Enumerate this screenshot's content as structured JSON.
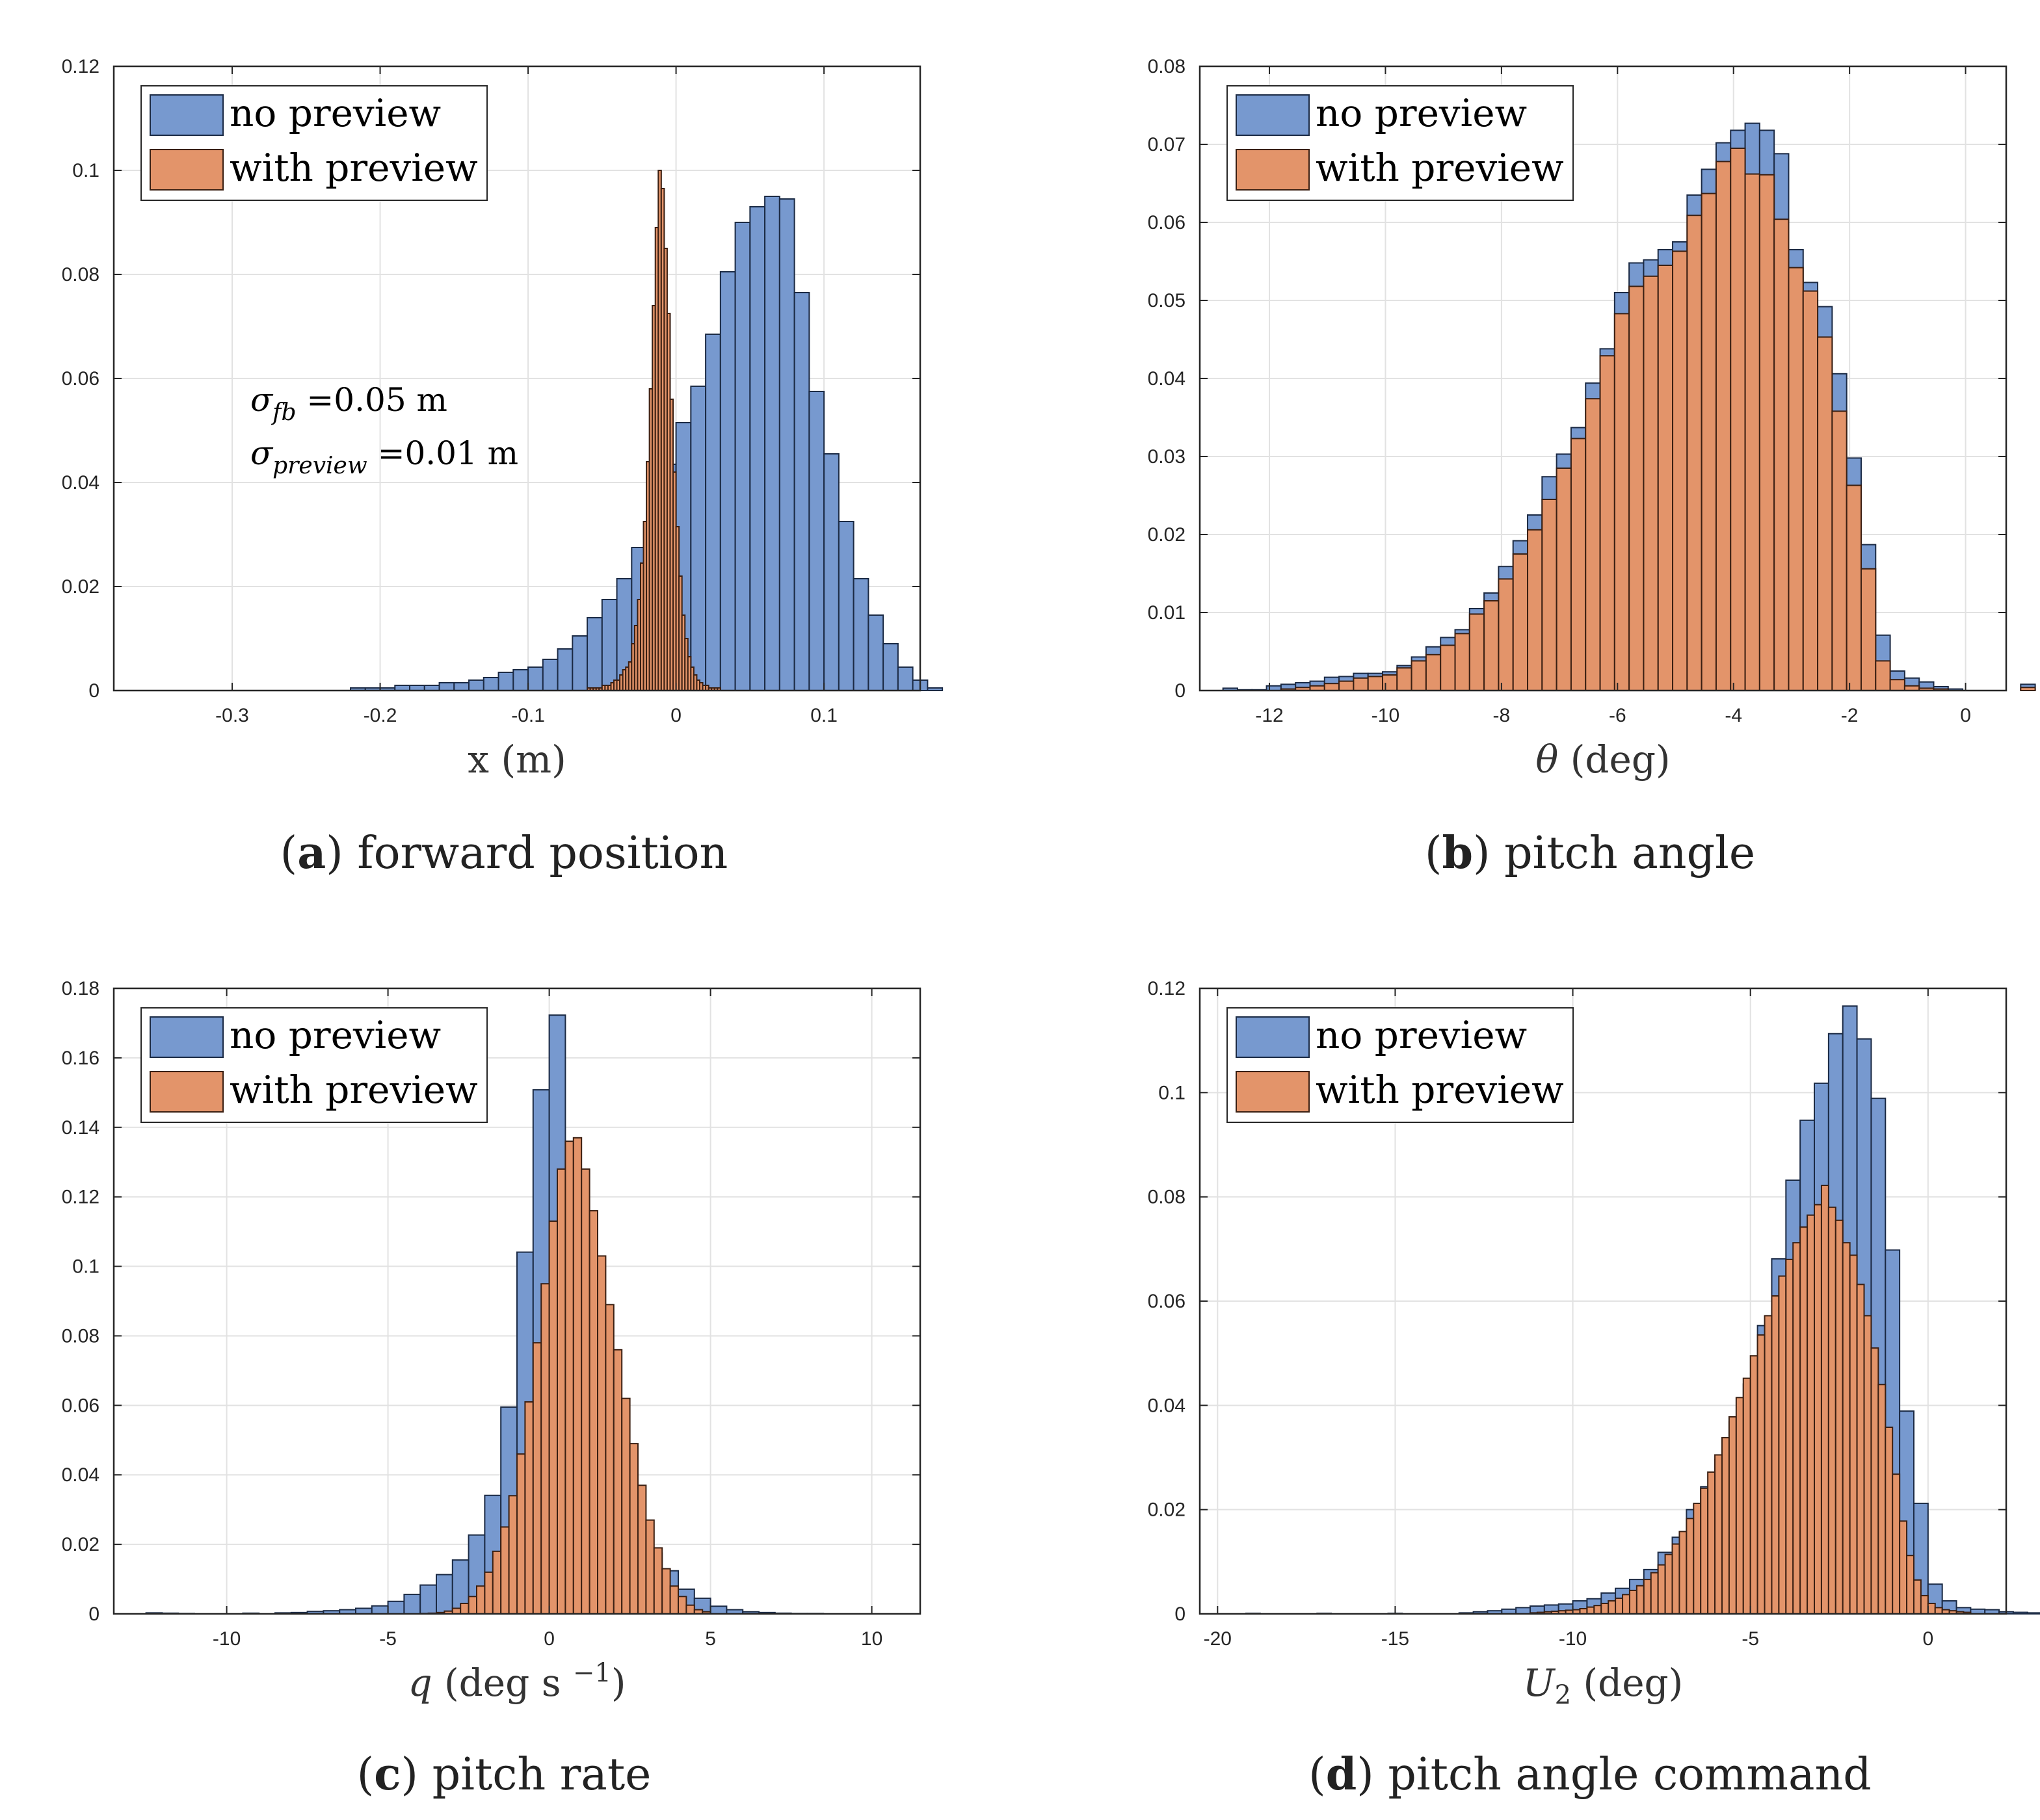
{
  "series_names": [
    "no preview",
    "with preview"
  ],
  "colors": {
    "no_preview": "#7799cf",
    "with_preview": "#e3946a",
    "edge_no_preview": "#1b2a44",
    "edge_with_preview": "#3a1f12"
  },
  "chart_data": [
    {
      "type": "bar",
      "id": "a",
      "title": "forward position",
      "caption_letter": "a",
      "xlabel": "x (m)",
      "ylabel": "",
      "xlim": [
        -0.38,
        0.165
      ],
      "ylim": [
        0,
        0.12
      ],
      "xticks": [
        -0.3,
        -0.2,
        -0.1,
        0,
        0.1
      ],
      "xtick_labels": [
        "-0.3",
        "-0.2",
        "-0.1",
        "0",
        "0.1"
      ],
      "yticks": [
        0,
        0.02,
        0.04,
        0.06,
        0.08,
        0.1,
        0.12
      ],
      "ytick_labels": [
        "0",
        "0.02",
        "0.04",
        "0.06",
        "0.08",
        "0.1",
        "0.12"
      ],
      "legend_position": "top-left",
      "annotations": [
        {
          "symbol": "σ",
          "subscript": "fb",
          "text": " =0.05 m"
        },
        {
          "symbol": "σ",
          "subscript": "preview",
          "text": " =0.01 m"
        }
      ],
      "series": [
        {
          "name": "no preview",
          "bin_start": -0.22,
          "bin_width": 0.01,
          "values": [
            0.0005,
            0.0005,
            0.0005,
            0.001,
            0.001,
            0.001,
            0.0015,
            0.0015,
            0.002,
            0.0025,
            0.0035,
            0.004,
            0.0045,
            0.006,
            0.008,
            0.0105,
            0.014,
            0.0175,
            0.0215,
            0.0275,
            0.0345,
            0.0435,
            0.0515,
            0.0585,
            0.0685,
            0.0805,
            0.09,
            0.093,
            0.095,
            0.0945,
            0.0765,
            0.0575,
            0.0455,
            0.0325,
            0.0215,
            0.0145,
            0.009,
            0.0045,
            0.002,
            0.0005
          ]
        },
        {
          "name": "with preview",
          "bin_start": -0.06,
          "bin_width": 0.002,
          "values": [
            0.0005,
            0.0005,
            0.0005,
            0.0005,
            0.0005,
            0.001,
            0.001,
            0.001,
            0.0015,
            0.002,
            0.002,
            0.003,
            0.004,
            0.0045,
            0.0055,
            0.009,
            0.0125,
            0.0175,
            0.0245,
            0.0325,
            0.044,
            0.058,
            0.074,
            0.089,
            0.1,
            0.0965,
            0.085,
            0.0725,
            0.056,
            0.042,
            0.0315,
            0.022,
            0.0145,
            0.01,
            0.0065,
            0.0045,
            0.003,
            0.002,
            0.0015,
            0.001,
            0.001,
            0.0005,
            0.0005,
            0.0005,
            0.0005
          ]
        }
      ]
    },
    {
      "type": "bar",
      "id": "b",
      "title": "pitch angle",
      "caption_letter": "b",
      "xlabel": "θ (deg)",
      "ylabel": "",
      "xlim": [
        -13.2,
        0.7
      ],
      "ylim": [
        0,
        0.08
      ],
      "xticks": [
        -12,
        -10,
        -8,
        -6,
        -4,
        -2,
        0
      ],
      "xtick_labels": [
        "-12",
        "-10",
        "-8",
        "-6",
        "-4",
        "-2",
        "0"
      ],
      "yticks": [
        0,
        0.01,
        0.02,
        0.03,
        0.04,
        0.05,
        0.06,
        0.07,
        0.08
      ],
      "ytick_labels": [
        "0",
        "0.01",
        "0.02",
        "0.03",
        "0.04",
        "0.05",
        "0.06",
        "0.07",
        "0.08"
      ],
      "legend_position": "top-left",
      "annotations": [],
      "series": [
        {
          "name": "no preview",
          "bin_start": -12.8,
          "bin_width": 0.25,
          "values": [
            0.0003,
            0.0001,
            0.0001,
            0.0006,
            0.0008,
            0.001,
            0.0012,
            0.0017,
            0.0018,
            0.0022,
            0.0022,
            0.0024,
            0.0032,
            0.0043,
            0.0056,
            0.0068,
            0.0078,
            0.0105,
            0.0125,
            0.0159,
            0.0192,
            0.0225,
            0.0274,
            0.0303,
            0.0337,
            0.0394,
            0.0438,
            0.051,
            0.0548,
            0.0552,
            0.0565,
            0.0575,
            0.0635,
            0.0668,
            0.0702,
            0.0718,
            0.0727,
            0.0718,
            0.0688,
            0.0565,
            0.0523,
            0.0492,
            0.0406,
            0.0298,
            0.0187,
            0.0071,
            0.0025,
            0.0016,
            0.0011,
            0.0005,
            0.0002,
            0.0,
            0.0,
            0.0,
            0.0,
            0.0008
          ]
        },
        {
          "name": "with preview",
          "bin_start": -12.8,
          "bin_width": 0.25,
          "values": [
            0.0,
            0.0,
            0.0,
            0.0,
            0.0002,
            0.0004,
            0.0006,
            0.0009,
            0.0012,
            0.0016,
            0.0018,
            0.002,
            0.0029,
            0.0038,
            0.0046,
            0.0058,
            0.0073,
            0.0098,
            0.0115,
            0.0143,
            0.0175,
            0.0206,
            0.0245,
            0.0285,
            0.0323,
            0.0374,
            0.0429,
            0.0483,
            0.0518,
            0.0531,
            0.0545,
            0.0563,
            0.0609,
            0.0637,
            0.0678,
            0.0695,
            0.0662,
            0.0661,
            0.0604,
            0.0542,
            0.0512,
            0.0453,
            0.0358,
            0.0263,
            0.0156,
            0.0038,
            0.0014,
            0.0006,
            0.0003,
            0.0002,
            0.0,
            0.0,
            0.0,
            0.0,
            0.0,
            0.0004
          ]
        }
      ]
    },
    {
      "type": "bar",
      "id": "c",
      "title": "pitch rate",
      "caption_letter": "c",
      "xlabel": "q (deg s −1)",
      "ylabel": "",
      "xlim": [
        -13.5,
        11.5
      ],
      "ylim": [
        0,
        0.18
      ],
      "xticks": [
        -10,
        -5,
        0,
        5,
        10
      ],
      "xtick_labels": [
        "-10",
        "-5",
        "0",
        "5",
        "10"
      ],
      "yticks": [
        0,
        0.02,
        0.04,
        0.06,
        0.08,
        0.1,
        0.12,
        0.14,
        0.16,
        0.18
      ],
      "ytick_labels": [
        "0",
        "0.02",
        "0.04",
        "0.06",
        "0.08",
        "0.1",
        "0.12",
        "0.14",
        "0.16",
        "0.18"
      ],
      "legend_position": "top-left",
      "annotations": [],
      "series": [
        {
          "name": "no preview",
          "bin_start": -12.5,
          "bin_width": 0.5,
          "values": [
            0.0003,
            0.0002,
            0.0001,
            0.0,
            0.0,
            0.0,
            0.0002,
            0.0,
            0.0003,
            0.0004,
            0.0007,
            0.0009,
            0.0012,
            0.0016,
            0.0023,
            0.0036,
            0.0056,
            0.0083,
            0.0113,
            0.0155,
            0.0227,
            0.0341,
            0.0595,
            0.1041,
            0.1508,
            0.1723,
            0.1187,
            0.0905,
            0.0613,
            0.0384,
            0.0247,
            0.0175,
            0.0124,
            0.0071,
            0.0045,
            0.0022,
            0.0012,
            0.0006,
            0.0004,
            0.0002,
            0.0001,
            0.0001,
            0.0,
            0.0,
            0.0,
            0.0,
            0.0
          ]
        },
        {
          "name": "with preview",
          "bin_start": -4.0,
          "bin_width": 0.25,
          "values": [
            0.0001,
            0.0002,
            0.0004,
            0.0008,
            0.0016,
            0.003,
            0.005,
            0.008,
            0.012,
            0.018,
            0.025,
            0.034,
            0.046,
            0.061,
            0.078,
            0.095,
            0.113,
            0.128,
            0.136,
            0.137,
            0.128,
            0.116,
            0.103,
            0.089,
            0.076,
            0.062,
            0.049,
            0.037,
            0.027,
            0.019,
            0.013,
            0.008,
            0.005,
            0.0025,
            0.0012,
            0.0006
          ]
        }
      ]
    },
    {
      "type": "bar",
      "id": "d",
      "title": "pitch angle command",
      "caption_letter": "d",
      "xlabel": "U2 (deg)",
      "ylabel": "",
      "xlim": [
        -20.5,
        2.2
      ],
      "ylim": [
        0,
        0.12
      ],
      "xticks": [
        -20,
        -15,
        -10,
        -5,
        0
      ],
      "xtick_labels": [
        "-20",
        "-15",
        "-10",
        "-5",
        "0"
      ],
      "yticks": [
        0,
        0.02,
        0.04,
        0.06,
        0.08,
        0.1,
        0.12
      ],
      "ytick_labels": [
        "0",
        "0.02",
        "0.04",
        "0.06",
        "0.08",
        "0.1",
        "0.12"
      ],
      "legend_position": "top-left",
      "annotations": [],
      "series": [
        {
          "name": "no preview",
          "bin_start": -19.2,
          "bin_width": 0.4,
          "values": [
            0.0001,
            0.0,
            0.0,
            0.0,
            0.0,
            0.0001,
            0.0,
            0.0,
            0.0,
            0.0,
            0.0001,
            0.0,
            0.0,
            0.0,
            0.0,
            0.0002,
            0.0004,
            0.0006,
            0.0009,
            0.0012,
            0.0015,
            0.0017,
            0.0019,
            0.0025,
            0.0029,
            0.004,
            0.0049,
            0.0066,
            0.0085,
            0.0118,
            0.0147,
            0.02,
            0.0244,
            0.0296,
            0.0369,
            0.0441,
            0.0553,
            0.0681,
            0.0832,
            0.0947,
            0.1018,
            0.1113,
            0.1166,
            0.1103,
            0.0989,
            0.0698,
            0.0389,
            0.0212,
            0.0057,
            0.0025,
            0.0012,
            0.0009,
            0.0008,
            0.0004,
            0.0003,
            0.0002,
            0.0001,
            0.0,
            0.0001
          ]
        },
        {
          "name": "with preview",
          "bin_start": -11.2,
          "bin_width": 0.2,
          "values": [
            0.0002,
            0.0003,
            0.0004,
            0.0005,
            0.0006,
            0.0007,
            0.0008,
            0.001,
            0.0013,
            0.0016,
            0.002,
            0.0025,
            0.003,
            0.0037,
            0.0045,
            0.0054,
            0.0066,
            0.0079,
            0.0094,
            0.0114,
            0.0134,
            0.0158,
            0.0183,
            0.0212,
            0.0241,
            0.0272,
            0.0305,
            0.0338,
            0.0378,
            0.0415,
            0.0452,
            0.0495,
            0.0535,
            0.0572,
            0.061,
            0.0648,
            0.068,
            0.0712,
            0.0742,
            0.0765,
            0.0785,
            0.0822,
            0.078,
            0.0755,
            0.0712,
            0.0688,
            0.0632,
            0.0572,
            0.051,
            0.044,
            0.0358,
            0.0268,
            0.0178,
            0.0112,
            0.0065,
            0.0035,
            0.002,
            0.0012,
            0.0008,
            0.0006,
            0.0004,
            0.0003
          ]
        }
      ]
    }
  ]
}
